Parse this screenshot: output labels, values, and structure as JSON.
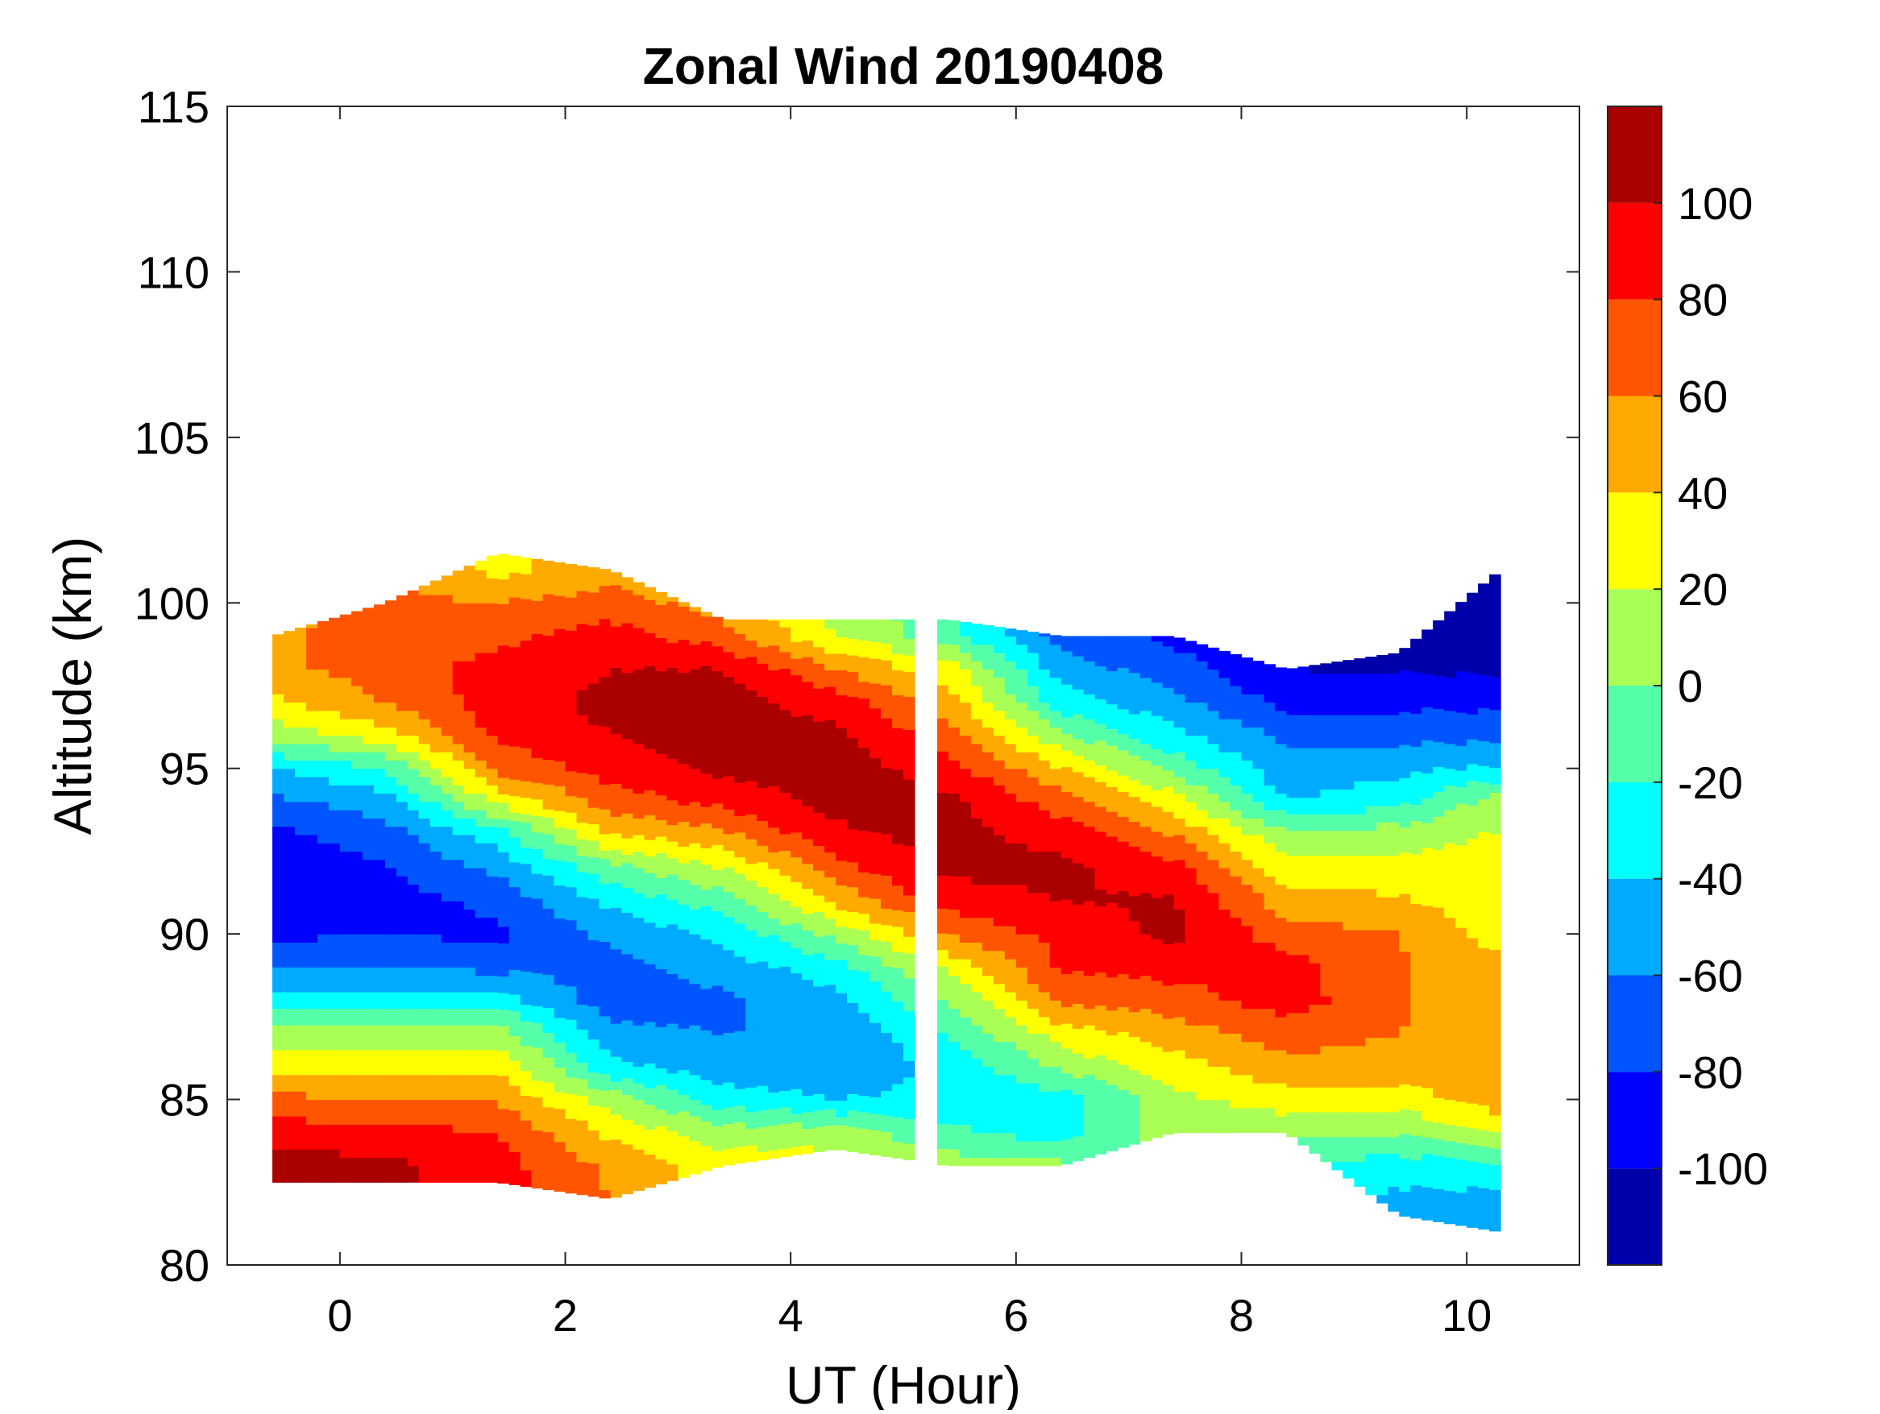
{
  "chart_data": {
    "type": "heatmap",
    "subtype": "filled-contour",
    "title": "Zonal Wind 20190408",
    "xlabel": "UT (Hour)",
    "ylabel": "Altitude (km)",
    "xlim": [
      -1,
      11
    ],
    "ylim": [
      80,
      115
    ],
    "xticks": [
      0,
      2,
      4,
      6,
      8,
      10
    ],
    "xtick_labels": [
      "0",
      "2",
      "4",
      "6",
      "8",
      "10"
    ],
    "yticks": [
      80,
      85,
      90,
      95,
      100,
      105,
      110,
      115
    ],
    "ytick_labels": [
      "80",
      "85",
      "90",
      "95",
      "100",
      "105",
      "110",
      "115"
    ],
    "grid": false,
    "colorbar": {
      "placement": "right",
      "range": [
        -120,
        120
      ],
      "levels": [
        -120,
        -100,
        -80,
        -60,
        -40,
        -20,
        0,
        20,
        40,
        60,
        80,
        100,
        120
      ],
      "colors": [
        "#0000AA",
        "#0000FF",
        "#0055FF",
        "#00AAFF",
        "#00FFFF",
        "#55FFAA",
        "#AAFF55",
        "#FFFF00",
        "#FFAA00",
        "#FF5500",
        "#FF0000",
        "#AA0000"
      ],
      "ticks": [
        -100,
        -80,
        -60,
        -40,
        -20,
        0,
        20,
        40,
        60,
        80,
        100
      ],
      "tick_labels": [
        "-100",
        "-80",
        "-60",
        "-40",
        "-20",
        "0",
        "20",
        "40",
        "60",
        "80",
        "100"
      ]
    },
    "x": [
      -0.6,
      0.4,
      1.4,
      2.4,
      3.4,
      4.4,
      5.4,
      6.4,
      7.4,
      8.4,
      9.4,
      10.3
    ],
    "altitude": [
      82,
      83,
      84,
      85,
      86,
      87,
      88,
      89,
      90,
      91,
      92,
      93,
      94,
      95,
      96,
      97,
      98,
      99,
      100,
      101
    ],
    "data_extent_bottom": [
      82.5,
      82.5,
      82.5,
      82,
      83,
      83.5,
      83,
      83,
      84,
      84,
      81.5,
      81
    ],
    "data_extent_top": [
      99,
      100,
      101.5,
      101,
      99.5,
      99.5,
      99.5,
      99,
      99,
      98,
      98.5,
      101
    ],
    "data_gap_hours": [
      5.1,
      5.3
    ],
    "wind": [
      [
        110,
        110,
        90,
        65,
        30,
        10,
        -30,
        -60,
        -85,
        -95,
        -95,
        -85,
        -65,
        -40,
        5,
        35,
        55,
        55,
        55,
        55
      ],
      [
        105,
        105,
        88,
        62,
        35,
        5,
        -35,
        -60,
        -80,
        -88,
        -82,
        -70,
        -50,
        -20,
        30,
        60,
        70,
        70,
        65,
        60
      ],
      [
        90,
        88,
        80,
        58,
        35,
        10,
        -30,
        -65,
        -85,
        -75,
        -55,
        -30,
        25,
        65,
        85,
        90,
        88,
        75,
        60,
        35
      ],
      [
        60,
        55,
        35,
        10,
        -35,
        -55,
        -70,
        -68,
        -55,
        -35,
        -5,
        40,
        70,
        88,
        100,
        105,
        100,
        88,
        70,
        50
      ],
      [
        30,
        30,
        10,
        -30,
        -50,
        -60,
        -65,
        -50,
        -35,
        -10,
        20,
        55,
        85,
        105,
        110,
        108,
        100,
        70,
        50,
        40
      ],
      [
        35,
        30,
        10,
        -40,
        -55,
        -60,
        -45,
        -30,
        5,
        45,
        72,
        95,
        108,
        110,
        105,
        90,
        60,
        20,
        10,
        0
      ],
      [
        15,
        10,
        -15,
        -35,
        -35,
        -20,
        0,
        25,
        60,
        90,
        105,
        108,
        105,
        90,
        70,
        50,
        30,
        -10,
        -20,
        -20
      ],
      [
        10,
        5,
        -30,
        -30,
        5,
        30,
        65,
        82,
        88,
        100,
        105,
        92,
        70,
        40,
        5,
        -30,
        -50,
        -70,
        -75,
        -75
      ],
      [
        0,
        0,
        10,
        15,
        30,
        50,
        70,
        88,
        105,
        102,
        88,
        60,
        30,
        -5,
        -35,
        -55,
        -70,
        -85,
        -85,
        -85
      ],
      [
        -30,
        -20,
        5,
        30,
        55,
        70,
        90,
        88,
        70,
        50,
        25,
        5,
        -40,
        -55,
        -65,
        -85,
        -100,
        -100,
        -100,
        -100
      ],
      [
        -45,
        -30,
        0,
        30,
        50,
        60,
        62,
        62,
        60,
        42,
        30,
        10,
        -25,
        -45,
        -65,
        -85,
        -100,
        -108,
        -108,
        -108
      ],
      [
        -45,
        -25,
        25,
        50,
        55,
        50,
        48,
        45,
        30,
        28,
        25,
        22,
        10,
        -35,
        -65,
        -85,
        -105,
        -110,
        -110,
        -110
      ]
    ]
  }
}
